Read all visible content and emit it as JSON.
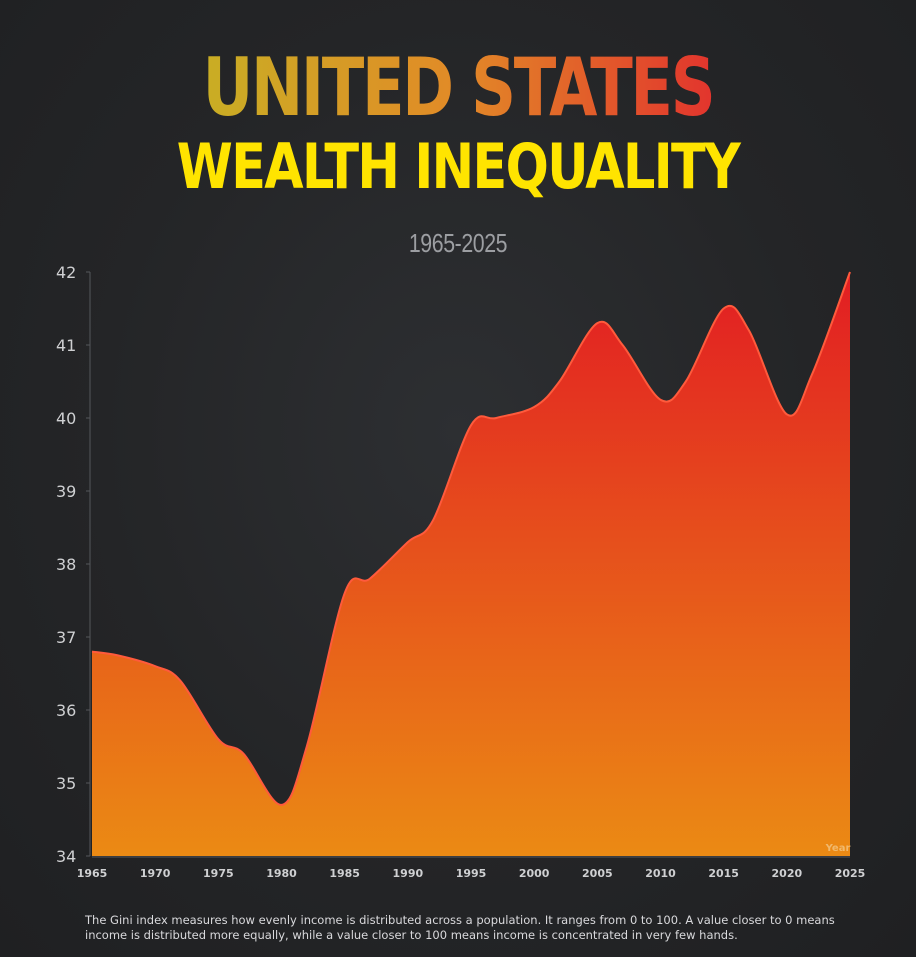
{
  "chart_data": {
    "type": "area",
    "title_line1": "UNITED STATES",
    "title_line2": "WEALTH INEQUALITY",
    "subtitle": "1965-2025",
    "xlabel": "Year",
    "ylabel": "",
    "x": [
      1965,
      1967,
      1970,
      1972,
      1975,
      1977,
      1980,
      1982,
      1985,
      1987,
      1990,
      1992,
      1995,
      1997,
      2000,
      2002,
      2005,
      2007,
      2010,
      2012,
      2015,
      2017,
      2020,
      2022,
      2025
    ],
    "y": [
      36.8,
      36.75,
      36.6,
      36.4,
      35.6,
      35.4,
      34.7,
      35.5,
      37.6,
      37.8,
      38.3,
      38.6,
      39.9,
      40.0,
      40.15,
      40.5,
      41.3,
      41.0,
      40.25,
      40.5,
      41.5,
      41.2,
      40.05,
      40.6,
      42.0
    ],
    "xticks": [
      1965,
      1970,
      1975,
      1980,
      1985,
      1990,
      1995,
      2000,
      2005,
      2010,
      2015,
      2020,
      2025
    ],
    "yticks": [
      34,
      35,
      36,
      37,
      38,
      39,
      40,
      41,
      42
    ],
    "xlim": [
      1965,
      2025
    ],
    "ylim": [
      34,
      42
    ],
    "grid": false,
    "legend": "none",
    "colors": {
      "area_top": "#e21d23",
      "area_bottom": "#eb8a14",
      "line": "#ff5a3c",
      "axis_text": "#cfd0d2",
      "background": "#262729"
    }
  },
  "footnote": "The Gini index measures how evenly income is distributed across a population. It ranges from 0 to 100. A value closer to 0 means income is distributed more equally, while a value closer to 100 means income is concentrated in very few hands."
}
